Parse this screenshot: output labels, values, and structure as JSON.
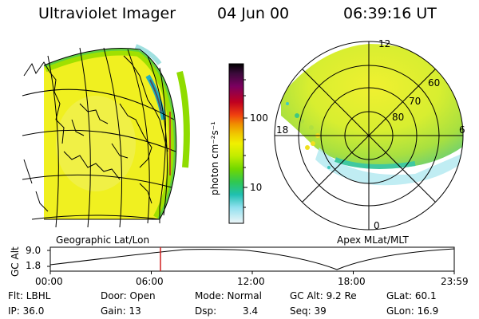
{
  "header": {
    "title": "Ultraviolet Imager",
    "date": "04 Jun 00",
    "time": "06:39:16 UT"
  },
  "panels": {
    "left_label": "Geographic Lat/Lon",
    "right_label": "Apex MLat/MLT"
  },
  "colorbar": {
    "unit_label": "photon cm⁻²s⁻¹",
    "scale": "log",
    "ticks": [
      "100",
      "10"
    ],
    "colors": [
      "#000000",
      "#3a0a3a",
      "#7a0060",
      "#b80030",
      "#e02020",
      "#f06010",
      "#f09000",
      "#f0c000",
      "#f0f000",
      "#c8ee00",
      "#90e000",
      "#50d020",
      "#20c080",
      "#20c8d0",
      "#a8e8f0",
      "#e8f4f8"
    ]
  },
  "polar": {
    "mlt_labels": [
      "12",
      "18",
      "6",
      "0"
    ],
    "mlat_labels": [
      "60",
      "70",
      "80"
    ]
  },
  "altitude_plot": {
    "ylabel": "GC Alt",
    "yticks": [
      "9.0",
      "1.8"
    ],
    "xticks": [
      "00:00",
      "06:00",
      "12:00",
      "18:00",
      "23:59"
    ],
    "marker_time_hours": 6.65
  },
  "status": {
    "flt": "Flt: LBHL",
    "ip": "IP: 36.0",
    "door": "Door: Open",
    "gain": "Gain: 13",
    "mode": "Mode: Normal",
    "dsp_label": "Dsp:",
    "dsp_value": "3.4",
    "gcalt": "GC Alt: 9.2 Re",
    "seq": "Seq: 39",
    "glat": "GLat:  60.1",
    "glon": "GLon:  16.9"
  }
}
